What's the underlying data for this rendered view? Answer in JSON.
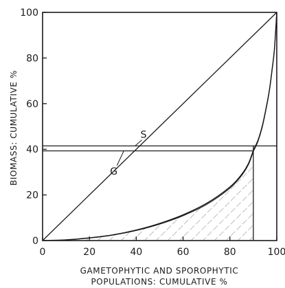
{
  "chart_data": {
    "type": "line",
    "title": "",
    "xlabel_lines": [
      "GAMETOPHYTIC AND SPOROPHYTIC",
      "POPULATIONS: CUMULATIVE %"
    ],
    "ylabel": "BIOMASS: CUMULATIVE %",
    "xlim": [
      0,
      100
    ],
    "ylim": [
      0,
      100
    ],
    "xticks": [
      "0",
      "20",
      "40",
      "60",
      "80",
      "100"
    ],
    "yticks": [
      "0",
      "20",
      "40",
      "60",
      "80",
      "100"
    ],
    "grid": false,
    "colors": {
      "ink": "#1a1a1a",
      "hatch": "#555555"
    },
    "series": [
      {
        "label": "S",
        "x": [
          0,
          10,
          20,
          30,
          40,
          50,
          60,
          70,
          80,
          85,
          88,
          90,
          92,
          94,
          96,
          97,
          98,
          99,
          100
        ],
        "y": [
          0,
          0.3,
          1.2,
          2.5,
          4.6,
          7.5,
          11.3,
          16.3,
          23.5,
          29,
          34,
          39.5,
          44,
          51,
          61,
          67,
          75,
          84,
          100
        ]
      },
      {
        "label": "G",
        "x": [
          0,
          10,
          20,
          30,
          40,
          50,
          60,
          70,
          80,
          85,
          88,
          90,
          92,
          94,
          96,
          97,
          98,
          99,
          100
        ],
        "y": [
          0,
          0.3,
          1.1,
          2.4,
          4.4,
          7.2,
          10.9,
          15.8,
          23,
          28.5,
          33.5,
          39,
          43.5,
          50.5,
          60.5,
          66.5,
          74.5,
          83.5,
          100
        ]
      }
    ],
    "reference_lines": {
      "equality": {
        "from": [
          0,
          0
        ],
        "to": [
          100,
          100
        ]
      },
      "S_level": 41.5,
      "G_level": 39.3,
      "x_cut": 90
    },
    "annotations": [
      {
        "text": "S",
        "x": 43,
        "y": 45
      },
      {
        "text": "G",
        "x": 30,
        "y": 32
      }
    ]
  }
}
